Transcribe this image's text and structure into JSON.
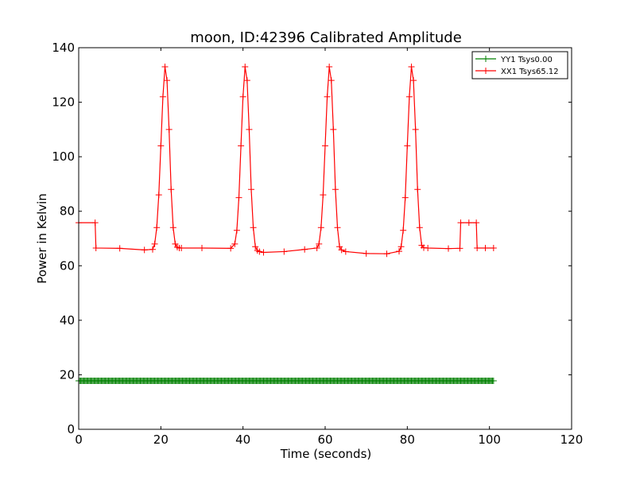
{
  "chart_data": {
    "type": "line",
    "title": "moon, ID:42396 Calibrated Amplitude",
    "xlabel": "Time (seconds)",
    "ylabel": "Power in Kelvin",
    "xlim": [
      0,
      120
    ],
    "ylim": [
      0,
      140
    ],
    "xticks": [
      "0",
      "20",
      "40",
      "60",
      "80",
      "100",
      "120"
    ],
    "yticks": [
      "0",
      "20",
      "40",
      "60",
      "80",
      "100",
      "120",
      "140"
    ],
    "grid": false,
    "legend_position": "top-right",
    "series": [
      {
        "name": "YY1 Tsys0.00",
        "color": "#008000",
        "marker": "+",
        "x": [
          0,
          101
        ],
        "y": [
          17.8,
          17.8
        ]
      },
      {
        "name": "XX1 Tsys65.12",
        "color": "#ff0000",
        "marker": "+",
        "x": [
          0,
          4,
          4.2,
          10,
          16,
          18,
          18.5,
          19,
          19.5,
          20,
          20.5,
          21,
          21.5,
          22,
          22.5,
          23,
          23.5,
          24,
          24.5,
          25,
          30,
          37,
          38,
          38.5,
          39,
          39.5,
          40,
          40.5,
          41,
          41.5,
          42,
          42.5,
          43,
          43.5,
          44,
          45,
          50,
          55,
          58,
          58.5,
          59,
          59.5,
          60,
          60.5,
          61,
          61.5,
          62,
          62.5,
          63,
          63.5,
          64,
          65,
          70,
          75,
          78,
          78.5,
          79,
          79.5,
          80,
          80.5,
          81,
          81.5,
          82,
          82.5,
          83,
          83.5,
          84,
          85,
          90,
          92.8,
          93,
          95,
          96.8,
          97,
          99,
          101
        ],
        "y": [
          75.8,
          75.8,
          66.5,
          66.4,
          65.8,
          66.0,
          68,
          74,
          86,
          104,
          122,
          133,
          128,
          110,
          88,
          74,
          68,
          66.8,
          66.5,
          66.5,
          66.5,
          66.4,
          68,
          73,
          85,
          104,
          122,
          133,
          128,
          110,
          88,
          74,
          67,
          65.6,
          65.2,
          64.9,
          65.2,
          66.0,
          66.5,
          68,
          74,
          86,
          104,
          122,
          133,
          128,
          110,
          88,
          74,
          67,
          65.8,
          65.2,
          64.5,
          64.4,
          65.3,
          67,
          73,
          85,
          104,
          122,
          133,
          128,
          110,
          88,
          74,
          67.5,
          66.6,
          66.5,
          66.3,
          66.4,
          75.8,
          75.8,
          75.8,
          66.5,
          66.5,
          66.5
        ]
      }
    ]
  }
}
